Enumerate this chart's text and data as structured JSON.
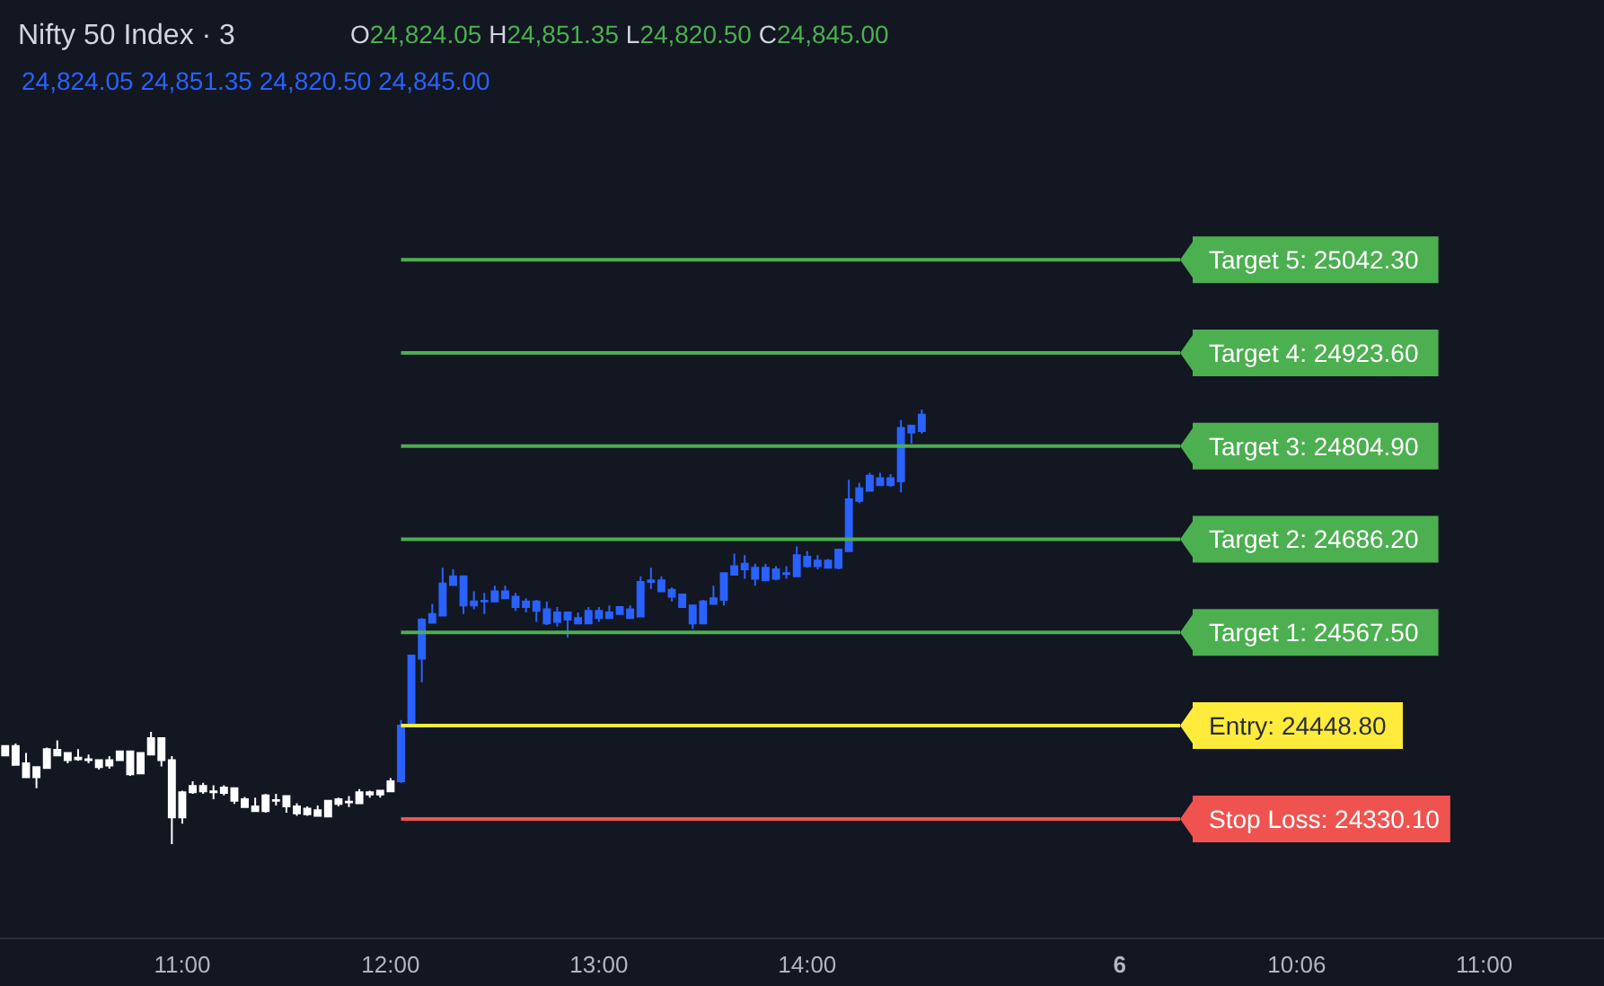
{
  "chart_data": {
    "type": "candlestick",
    "title": "Nifty 50 Index · 3",
    "annotations": [
      "O24,824.05 H24,851.35 L24,820.50 C24,845.00",
      "24,824.05 24,851.35 24,820.50 24,845.00"
    ],
    "categories": [
      null,
      null,
      null,
      null,
      null,
      null,
      null,
      null,
      null,
      null,
      null,
      null,
      null,
      null,
      null,
      null,
      null,
      "11:00",
      null,
      null,
      null,
      null,
      null,
      null,
      null,
      null,
      null,
      null,
      null,
      null,
      null,
      null,
      null,
      null,
      null,
      null,
      null,
      "12:00",
      null,
      null,
      null,
      null,
      null,
      null,
      null,
      null,
      null,
      null,
      null,
      null,
      null,
      null,
      null,
      null,
      null,
      null,
      null,
      "13:00",
      null,
      null,
      null,
      null,
      null,
      null,
      null,
      null,
      null,
      null,
      null,
      null,
      null,
      null,
      null,
      null,
      null,
      null,
      null,
      "14:00",
      null,
      null,
      null,
      null,
      null,
      null,
      null,
      null,
      null,
      null,
      null,
      null,
      null,
      null,
      null,
      null,
      null,
      null,
      null,
      null,
      null,
      null,
      null,
      null,
      null,
      null,
      null,
      null,
      null,
      "6",
      null,
      null,
      null,
      null,
      null,
      null,
      null,
      null,
      null,
      null,
      null,
      null,
      null,
      null,
      null,
      null,
      "10:06",
      null,
      null,
      null,
      null,
      null,
      null,
      null,
      null,
      null,
      null,
      null,
      null,
      null,
      null,
      null,
      null,
      null,
      "11:00",
      null,
      null,
      null,
      null,
      null,
      null,
      null,
      null,
      null,
      null,
      null
    ],
    "series": [
      {
        "color": "#ffffff",
        "ohlc": [
          [
            24411,
            24424,
            24410,
            24423
          ],
          [
            24399,
            24426,
            24399,
            24423
          ],
          [
            24383,
            24414,
            24383,
            24401
          ],
          [
            24383,
            24396,
            24369,
            24396
          ],
          [
            24395,
            24421,
            24395,
            24419
          ],
          [
            24411,
            24430,
            24410,
            24418
          ],
          [
            24405,
            24414,
            24401,
            24414
          ],
          [
            24406,
            24419,
            24404,
            24408
          ],
          [
            24405,
            24412,
            24401,
            24406
          ],
          [
            24396,
            24405,
            24393,
            24405
          ],
          [
            24398,
            24410,
            24394,
            24405
          ],
          [
            24405,
            24416,
            24405,
            24416
          ],
          [
            24387,
            24416,
            24385,
            24416
          ],
          [
            24388,
            24414,
            24388,
            24414
          ],
          [
            24412,
            24441,
            24412,
            24433
          ],
          [
            24405,
            24433,
            24397,
            24433
          ],
          [
            24332,
            24410,
            24298,
            24405
          ],
          [
            24332,
            24366,
            24324,
            24364
          ],
          [
            24364,
            24378,
            24362,
            24372
          ],
          [
            24365,
            24376,
            24362,
            24372
          ],
          [
            24364,
            24373,
            24355,
            24365
          ],
          [
            24363,
            24373,
            24360,
            24370
          ],
          [
            24353,
            24369,
            24349,
            24369
          ],
          [
            24345,
            24358,
            24345,
            24355
          ],
          [
            24340,
            24357,
            24340,
            24346
          ],
          [
            24340,
            24362,
            24338,
            24360
          ],
          [
            24353,
            24362,
            24347,
            24354
          ],
          [
            24346,
            24359,
            24338,
            24359
          ],
          [
            24337,
            24350,
            24334,
            24346
          ],
          [
            24336,
            24346,
            24334,
            24343
          ],
          [
            24334,
            24347,
            24334,
            24341
          ],
          [
            24333,
            24353,
            24333,
            24353
          ],
          [
            24349,
            24357,
            24346,
            24355
          ],
          [
            24351,
            24359,
            24345,
            24352
          ],
          [
            24350,
            24368,
            24350,
            24364
          ],
          [
            24361,
            24366,
            24357,
            24364
          ],
          [
            24361,
            24366,
            24357,
            24366
          ],
          [
            24365,
            24382,
            24365,
            24378
          ],
          null,
          null,
          null,
          null,
          null,
          null,
          null,
          null,
          null,
          null,
          null,
          null,
          null,
          null,
          null,
          null,
          null,
          null,
          null,
          null,
          null,
          null,
          null,
          null,
          null,
          null,
          null,
          null,
          null,
          null,
          null,
          null,
          null,
          null,
          null,
          null,
          null,
          null,
          null,
          null,
          null,
          null,
          null,
          null,
          null,
          null,
          null,
          null,
          null,
          null,
          null,
          null,
          null,
          null,
          null,
          null,
          null,
          null,
          null,
          null,
          null,
          null,
          null,
          null,
          null,
          null,
          null,
          null,
          null,
          null,
          null,
          null,
          null,
          null,
          null,
          null,
          null,
          null,
          null,
          null,
          null,
          null,
          null,
          null,
          null,
          null,
          null,
          null,
          null,
          null,
          null,
          null,
          null,
          null,
          null,
          null,
          null,
          null,
          null,
          null,
          null,
          null,
          null,
          null,
          null,
          null,
          null,
          null,
          null,
          null,
          null,
          null,
          null,
          null,
          null,
          null
        ]
      },
      {
        "color": "#2962ff",
        "ohlc": [
          null,
          null,
          null,
          null,
          null,
          null,
          null,
          null,
          null,
          null,
          null,
          null,
          null,
          null,
          null,
          null,
          null,
          null,
          null,
          null,
          null,
          null,
          null,
          null,
          null,
          null,
          null,
          null,
          null,
          null,
          null,
          null,
          null,
          null,
          null,
          null,
          null,
          null,
          [
            24378,
            24456,
            24376,
            24449
          ],
          [
            24449,
            24538,
            24449,
            24538
          ],
          [
            24534,
            24586,
            24504,
            24584
          ],
          [
            24580,
            24604,
            24579,
            24591
          ],
          [
            24589,
            24650,
            24588,
            24630
          ],
          [
            24628,
            24648,
            24627,
            24639
          ],
          [
            24602,
            24639,
            24591,
            24639
          ],
          [
            24602,
            24620,
            24597,
            24607
          ],
          [
            24607,
            24618,
            24591,
            24608
          ],
          [
            24607,
            24627,
            24606,
            24620
          ],
          [
            24611,
            24627,
            24611,
            24620
          ],
          [
            24600,
            24618,
            24595,
            24613
          ],
          [
            24600,
            24611,
            24593,
            24607
          ],
          [
            24595,
            24609,
            24581,
            24607
          ],
          [
            24579,
            24607,
            24577,
            24597
          ],
          [
            24581,
            24600,
            24575,
            24593
          ],
          [
            24584,
            24593,
            24561,
            24593
          ],
          [
            24579,
            24593,
            24579,
            24586
          ],
          [
            24579,
            24600,
            24579,
            24595
          ],
          [
            24586,
            24600,
            24581,
            24595
          ],
          [
            24586,
            24602,
            24586,
            24593
          ],
          [
            24591,
            24600,
            24591,
            24600
          ],
          [
            24586,
            24602,
            24586,
            24597
          ],
          [
            24588,
            24639,
            24588,
            24632
          ],
          [
            24632,
            24650,
            24623,
            24634
          ],
          [
            24620,
            24639,
            24620,
            24634
          ],
          [
            24613,
            24625,
            24607,
            24622
          ],
          [
            24600,
            24616,
            24600,
            24616
          ],
          [
            24579,
            24602,
            24572,
            24602
          ],
          [
            24579,
            24609,
            24579,
            24607
          ],
          [
            24604,
            24627,
            24604,
            24611
          ],
          [
            24609,
            24643,
            24602,
            24643
          ],
          [
            24641,
            24668,
            24641,
            24652
          ],
          [
            24648,
            24666,
            24636,
            24655
          ],
          [
            24636,
            24655,
            24627,
            24650
          ],
          [
            24634,
            24655,
            24634,
            24650
          ],
          [
            24636,
            24652,
            24634,
            24648
          ],
          [
            24642,
            24652,
            24636,
            24643
          ],
          [
            24639,
            24677,
            24639,
            24666
          ],
          [
            24652,
            24671,
            24650,
            24664
          ],
          [
            24652,
            24666,
            24648,
            24659
          ],
          [
            24650,
            24661,
            24650,
            24659
          ],
          [
            24650,
            24673,
            24648,
            24673
          ],
          [
            24671,
            24762,
            24671,
            24737
          ],
          [
            24735,
            24758,
            24732,
            24751
          ],
          [
            24748,
            24771,
            24748,
            24767
          ],
          [
            24755,
            24771,
            24755,
            24764
          ],
          [
            24755,
            24769,
            24753,
            24764
          ],
          [
            24760,
            24838,
            24746,
            24828
          ],
          [
            24822,
            24831,
            24808,
            24831
          ],
          [
            24824.05,
            24851.35,
            24820.5,
            24845
          ],
          null,
          null,
          null,
          null,
          null,
          null,
          null,
          null,
          null,
          null,
          null,
          null,
          null,
          null,
          null,
          null,
          null,
          null,
          null,
          null,
          null,
          null,
          null,
          null,
          null,
          null,
          null,
          null,
          null,
          null,
          null,
          null,
          null,
          null,
          null,
          null,
          null,
          null,
          null,
          null,
          null,
          null,
          null,
          null,
          null,
          null,
          null,
          null,
          null,
          null,
          null,
          null,
          null,
          null,
          null,
          null,
          null,
          null,
          null,
          null,
          null,
          null,
          null,
          null,
          null
        ]
      }
    ],
    "ylim": [
      24179,
      25373
    ],
    "yticks": [
      {
        "value": 25042.3,
        "label": "Target 5: 25042.30"
      },
      {
        "value": 24923.6,
        "label": "Target 4: 24923.60"
      },
      {
        "value": 24804.9,
        "label": "Target 3: 24804.90"
      },
      {
        "value": 24686.2,
        "label": "Target 2: 24686.20"
      },
      {
        "value": 24567.5,
        "label": "Target 1: 24567.50"
      },
      {
        "value": 24448.8,
        "label": "Entry: 24448.80"
      },
      {
        "value": 24330.1,
        "label": "Stop Loss: 24330.10"
      }
    ],
    "ref_lines": [
      {
        "axis": "y",
        "value": 25042.3,
        "color": "#4caf50"
      },
      {
        "axis": "y",
        "value": 24923.6,
        "color": "#4caf50"
      },
      {
        "axis": "y",
        "value": 24804.9,
        "color": "#4caf50"
      },
      {
        "axis": "y",
        "value": 24686.2,
        "color": "#4caf50"
      },
      {
        "axis": "y",
        "value": 24567.5,
        "color": "#4caf50"
      },
      {
        "axis": "y",
        "value": 24448.8,
        "color": "#ffeb3b"
      },
      {
        "axis": "y",
        "value": 24330.1,
        "color": "#ef5350"
      }
    ],
    "grid": false
  }
}
